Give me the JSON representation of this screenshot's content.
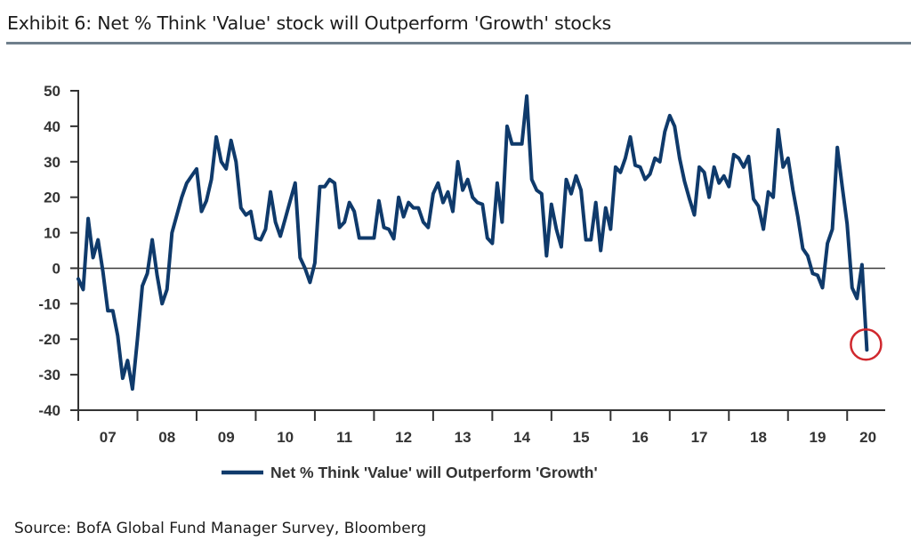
{
  "header": {
    "title": "Exhibit 6: Net % Think 'Value' stock will Outperform 'Growth' stocks"
  },
  "footer": {
    "source": "Source: BofA Global Fund Manager Survey, Bloomberg"
  },
  "colors": {
    "series": "#0f3a6b",
    "highlight": "#d0282e",
    "axis": "#333333",
    "title_rule": "#6f7f8c"
  },
  "chart_data": {
    "type": "line",
    "title": "Exhibit 6: Net % Think 'Value' stock will Outperform 'Growth' stocks",
    "xlabel": "",
    "ylabel": "",
    "frequency": "monthly",
    "start": "2007-01",
    "end": "2020-05",
    "ylim": [
      -40,
      50
    ],
    "yticks": [
      50,
      40,
      30,
      20,
      10,
      0,
      -10,
      -20,
      -30,
      -40
    ],
    "ytick_labels": [
      "50",
      "40",
      "30",
      "20",
      "10",
      "0",
      "-10",
      "-20",
      "-30",
      "-40"
    ],
    "xtick_labels": [
      "07",
      "08",
      "09",
      "10",
      "11",
      "12",
      "13",
      "14",
      "15",
      "16",
      "17",
      "18",
      "19",
      "20"
    ],
    "zero_line": true,
    "grid": false,
    "legend": {
      "position": "bottom-center",
      "entries": [
        "Net % Think 'Value' will Outperform 'Growth'"
      ]
    },
    "annotations": [
      {
        "type": "circle",
        "target": "last-point",
        "label": ""
      }
    ],
    "series": [
      {
        "name": "Net % Think 'Value' will Outperform 'Growth'",
        "values": [
          -3,
          -6,
          14,
          3,
          8,
          -1,
          -12,
          -12,
          -19,
          -31,
          -26,
          -34,
          -20,
          -5,
          -1.5,
          8,
          -2,
          -10,
          -6,
          10,
          15,
          20,
          24,
          26,
          28,
          16,
          19,
          25,
          37,
          30,
          28,
          36,
          30,
          17,
          15,
          16,
          8.5,
          8,
          11,
          21.5,
          13,
          9,
          14,
          19,
          24,
          3,
          0,
          -4,
          1.5,
          23,
          23,
          25,
          24,
          11.5,
          13,
          18.5,
          16,
          8.5,
          8.5,
          8.5,
          8.5,
          19,
          11.5,
          11,
          8.3,
          20,
          14.5,
          18.5,
          17,
          17,
          13,
          11.5,
          21,
          24,
          18.5,
          21.5,
          16,
          30,
          22,
          25,
          20,
          18.5,
          18,
          8.5,
          7,
          24,
          13,
          40,
          35,
          35,
          35,
          48.5,
          25,
          22,
          21,
          3.5,
          18,
          11,
          6,
          25,
          21,
          26,
          22,
          8,
          8,
          18.5,
          5,
          17,
          11,
          28.5,
          27,
          31,
          37,
          29,
          28.5,
          25,
          26.5,
          31,
          30,
          38.5,
          43,
          40,
          31,
          24.5,
          19.5,
          15,
          28.5,
          27,
          20,
          28.5,
          24,
          26,
          23,
          32,
          31,
          28.5,
          31.5,
          19.5,
          17.5,
          11,
          21.5,
          20,
          39,
          28.5,
          31,
          22,
          14.5,
          5.5,
          3.5,
          -1.5,
          -2,
          -5.5,
          7,
          11,
          34,
          23,
          12.5,
          -5.5,
          -8.5,
          1,
          -23
        ]
      }
    ]
  }
}
